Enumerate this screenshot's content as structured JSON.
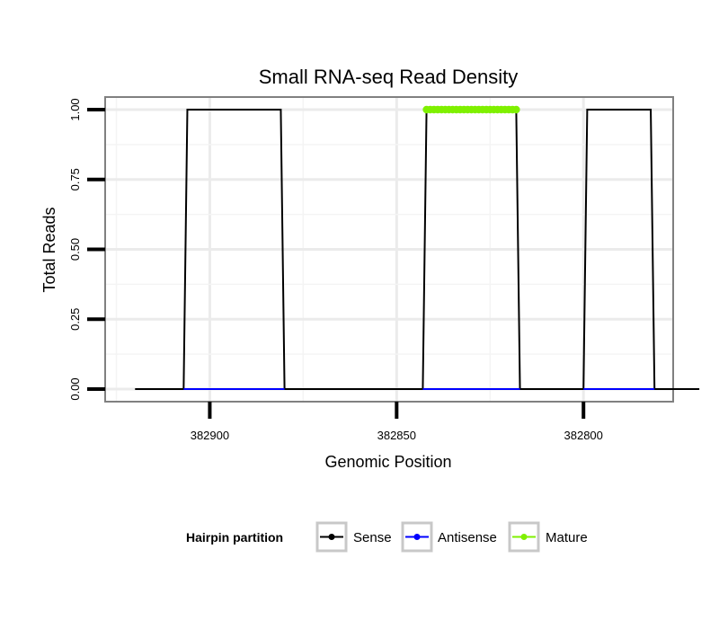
{
  "chart_data": {
    "type": "line",
    "title": "Small RNA-seq Read Density",
    "xlabel": "Genomic Position",
    "ylabel": "Total Reads",
    "x_reversed": true,
    "xlim": [
      382928,
      382776
    ],
    "ylim": [
      -0.045,
      1.045
    ],
    "x_ticks": [
      382900,
      382850,
      382800
    ],
    "y_ticks": [
      0.0,
      0.25,
      0.5,
      0.75,
      1.0
    ],
    "x_tick_labels": [
      "382900",
      "382850",
      "382800"
    ],
    "y_tick_labels": [
      "0.00",
      "0.25",
      "0.50",
      "0.75",
      "1.00"
    ],
    "grid": true,
    "legend": {
      "title": "Hairpin partition",
      "placement": "bottom"
    },
    "series": [
      {
        "name": "Sense",
        "color": "#000000",
        "style": "line",
        "x": [
          382920,
          382907,
          382906,
          382881,
          382880,
          382843,
          382842,
          382818,
          382817,
          382800,
          382799,
          382782,
          382781,
          382769
        ],
        "y": [
          0,
          0,
          1,
          1,
          0,
          0,
          1,
          1,
          0,
          0,
          1,
          1,
          0,
          0
        ]
      },
      {
        "name": "Antisense",
        "color": "#0000ff",
        "style": "line",
        "x": [
          382907,
          382880,
          382843,
          382817,
          382800,
          382781
        ],
        "y": [
          0,
          0,
          0,
          0,
          0,
          0
        ],
        "segments": [
          [
            0,
            1
          ],
          [
            2,
            3
          ],
          [
            4,
            5
          ]
        ]
      },
      {
        "name": "Mature",
        "color": "#7ff000",
        "style": "points",
        "x": [
          382842,
          382841,
          382840,
          382839,
          382838,
          382837,
          382836,
          382835,
          382834,
          382833,
          382832,
          382831,
          382830,
          382829,
          382828,
          382827,
          382826,
          382825,
          382824,
          382823,
          382822,
          382821,
          382820,
          382819,
          382818
        ],
        "y": [
          1,
          1,
          1,
          1,
          1,
          1,
          1,
          1,
          1,
          1,
          1,
          1,
          1,
          1,
          1,
          1,
          1,
          1,
          1,
          1,
          1,
          1,
          1,
          1,
          1
        ]
      }
    ]
  }
}
